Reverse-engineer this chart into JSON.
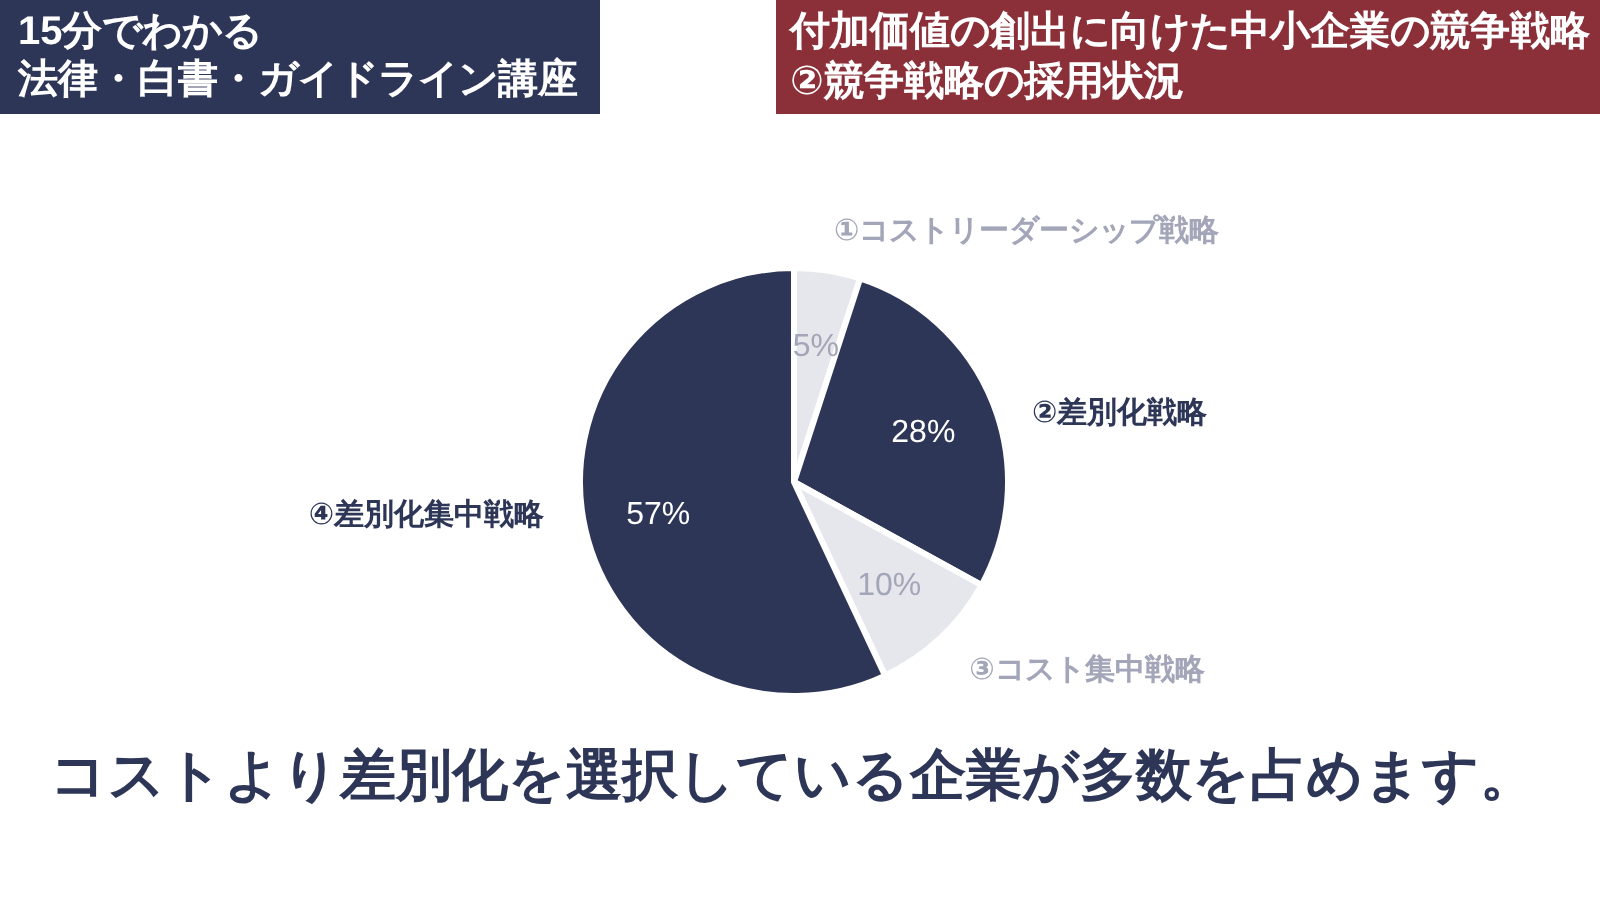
{
  "chart_data": {
    "type": "pie",
    "title": "付加価値の創出に向けた中小企業の競争戦略",
    "subtitle": "②競争戦略の採用状況",
    "annotations": [
      "15分でわかる",
      "法律・白書・ガイドライン講座",
      "コストより差別化を選択している企業が多数を占めます。"
    ],
    "categories": [
      "①コストリーダーシップ戦略",
      "②差別化戦略",
      "③コスト集中戦略",
      "④差別化集中戦略"
    ],
    "values": [
      5,
      28,
      10,
      57
    ],
    "colors": [
      "#e6e7ec",
      "#2e3658",
      "#e6e7ec",
      "#2e3658"
    ],
    "value_labels": [
      "5%",
      "28%",
      "10%",
      "57%"
    ]
  }
}
